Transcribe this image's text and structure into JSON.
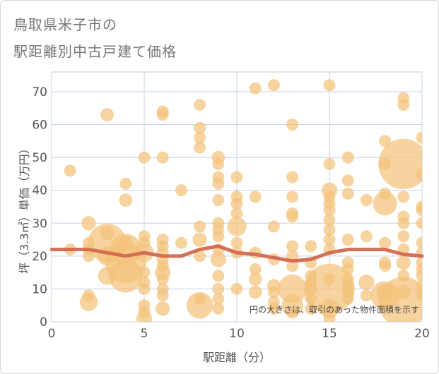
{
  "title_line1": "鳥取県米子市の",
  "title_line2": "駅距離別中古戸建て価格",
  "chart_data": {
    "type": "scatter",
    "xlabel": "駅距離（分）",
    "ylabel": "坪（3.3㎡）単価（万円）",
    "xlim": [
      0,
      20
    ],
    "ylim": [
      0,
      76
    ],
    "xticks": [
      0,
      5,
      10,
      15,
      20
    ],
    "yticks": [
      0,
      10,
      20,
      30,
      40,
      50,
      60,
      70
    ],
    "grid": true,
    "note": "円の大きさは、取引のあった物件面積を示す",
    "bubble_color": "#f4c27a",
    "line_color": "#d2694f",
    "trend_line": {
      "x": [
        0,
        1,
        2,
        3,
        4,
        5,
        6,
        7,
        8,
        9,
        10,
        11,
        12,
        13,
        14,
        15,
        16,
        17,
        18,
        19,
        20
      ],
      "y": [
        22,
        22,
        22,
        21,
        20,
        21,
        20,
        20,
        22,
        23,
        21,
        20.5,
        19.5,
        18.5,
        19,
        21,
        22,
        22,
        22,
        20.5,
        20
      ]
    },
    "points": [
      {
        "x": 1,
        "y": 46,
        "s": 1
      },
      {
        "x": 1,
        "y": 22,
        "s": 1
      },
      {
        "x": 2,
        "y": 30,
        "s": 1.2
      },
      {
        "x": 2,
        "y": 24,
        "s": 1
      },
      {
        "x": 2,
        "y": 22,
        "s": 1
      },
      {
        "x": 2,
        "y": 20,
        "s": 1
      },
      {
        "x": 2,
        "y": 8,
        "s": 1
      },
      {
        "x": 2,
        "y": 6,
        "s": 1.5
      },
      {
        "x": 3,
        "y": 63,
        "s": 1.1
      },
      {
        "x": 3,
        "y": 27,
        "s": 1.2
      },
      {
        "x": 3,
        "y": 24,
        "s": 3.2
      },
      {
        "x": 3,
        "y": 20,
        "s": 1.6
      },
      {
        "x": 3,
        "y": 14,
        "s": 1.5
      },
      {
        "x": 4,
        "y": 42,
        "s": 1
      },
      {
        "x": 4,
        "y": 37,
        "s": 1.1
      },
      {
        "x": 4,
        "y": 22,
        "s": 2.6
      },
      {
        "x": 4,
        "y": 18,
        "s": 3.4
      },
      {
        "x": 4,
        "y": 14,
        "s": 2.8
      },
      {
        "x": 4,
        "y": 24,
        "s": 1.2
      },
      {
        "x": 5,
        "y": 50,
        "s": 1
      },
      {
        "x": 5,
        "y": 26,
        "s": 1
      },
      {
        "x": 5,
        "y": 24,
        "s": 1
      },
      {
        "x": 5,
        "y": 21,
        "s": 1.6
      },
      {
        "x": 5,
        "y": 15,
        "s": 1
      },
      {
        "x": 5,
        "y": 12,
        "s": 1
      },
      {
        "x": 5,
        "y": 10,
        "s": 1
      },
      {
        "x": 5,
        "y": 5,
        "s": 1
      },
      {
        "x": 5,
        "y": 3,
        "s": 1
      },
      {
        "x": 5,
        "y": 1,
        "s": 1.3
      },
      {
        "x": 6,
        "y": 64,
        "s": 1
      },
      {
        "x": 6,
        "y": 63,
        "s": 1
      },
      {
        "x": 6,
        "y": 50,
        "s": 1
      },
      {
        "x": 6,
        "y": 25,
        "s": 1
      },
      {
        "x": 6,
        "y": 23,
        "s": 1
      },
      {
        "x": 6,
        "y": 21,
        "s": 1
      },
      {
        "x": 6,
        "y": 19,
        "s": 1
      },
      {
        "x": 6,
        "y": 17,
        "s": 1
      },
      {
        "x": 6,
        "y": 15,
        "s": 1.3
      },
      {
        "x": 6,
        "y": 13,
        "s": 1
      },
      {
        "x": 6,
        "y": 10,
        "s": 1
      },
      {
        "x": 6,
        "y": 8,
        "s": 1
      },
      {
        "x": 6,
        "y": 4,
        "s": 1.2
      },
      {
        "x": 7,
        "y": 40,
        "s": 1
      },
      {
        "x": 7,
        "y": 24,
        "s": 1
      },
      {
        "x": 8,
        "y": 66,
        "s": 1
      },
      {
        "x": 8,
        "y": 59,
        "s": 1
      },
      {
        "x": 8,
        "y": 56,
        "s": 1
      },
      {
        "x": 8,
        "y": 53,
        "s": 1
      },
      {
        "x": 8,
        "y": 29,
        "s": 1
      },
      {
        "x": 8,
        "y": 25,
        "s": 1.2
      },
      {
        "x": 8,
        "y": 20,
        "s": 1
      },
      {
        "x": 8,
        "y": 7,
        "s": 1
      },
      {
        "x": 8,
        "y": 5,
        "s": 2.2
      },
      {
        "x": 9,
        "y": 50,
        "s": 1.1
      },
      {
        "x": 9,
        "y": 48,
        "s": 1
      },
      {
        "x": 9,
        "y": 44,
        "s": 1
      },
      {
        "x": 9,
        "y": 42,
        "s": 1
      },
      {
        "x": 9,
        "y": 37,
        "s": 1
      },
      {
        "x": 9,
        "y": 30,
        "s": 1
      },
      {
        "x": 9,
        "y": 28,
        "s": 1
      },
      {
        "x": 9,
        "y": 26,
        "s": 1
      },
      {
        "x": 9,
        "y": 22,
        "s": 1
      },
      {
        "x": 9,
        "y": 19,
        "s": 1.3
      },
      {
        "x": 9,
        "y": 14,
        "s": 1
      },
      {
        "x": 9,
        "y": 10,
        "s": 1
      },
      {
        "x": 9,
        "y": 7,
        "s": 1
      },
      {
        "x": 9,
        "y": 4,
        "s": 1
      },
      {
        "x": 10,
        "y": 44,
        "s": 1
      },
      {
        "x": 10,
        "y": 38,
        "s": 1
      },
      {
        "x": 10,
        "y": 36,
        "s": 1
      },
      {
        "x": 10,
        "y": 33,
        "s": 1
      },
      {
        "x": 10,
        "y": 29,
        "s": 1.6
      },
      {
        "x": 10,
        "y": 24,
        "s": 1
      },
      {
        "x": 10,
        "y": 21,
        "s": 1
      },
      {
        "x": 10,
        "y": 10,
        "s": 1
      },
      {
        "x": 11,
        "y": 71,
        "s": 1
      },
      {
        "x": 11,
        "y": 38,
        "s": 1
      },
      {
        "x": 11,
        "y": 21,
        "s": 1
      },
      {
        "x": 11,
        "y": 16,
        "s": 1
      },
      {
        "x": 11,
        "y": 13,
        "s": 1.1
      },
      {
        "x": 11,
        "y": 9,
        "s": 1.1
      },
      {
        "x": 12,
        "y": 72,
        "s": 1
      },
      {
        "x": 12,
        "y": 29,
        "s": 1
      },
      {
        "x": 12,
        "y": 19,
        "s": 1
      },
      {
        "x": 12,
        "y": 11,
        "s": 1.1
      },
      {
        "x": 12,
        "y": 9,
        "s": 1
      },
      {
        "x": 12,
        "y": 6,
        "s": 1
      },
      {
        "x": 12,
        "y": 4,
        "s": 1
      },
      {
        "x": 13,
        "y": 60,
        "s": 1
      },
      {
        "x": 13,
        "y": 44,
        "s": 1
      },
      {
        "x": 13,
        "y": 38,
        "s": 1
      },
      {
        "x": 13,
        "y": 33,
        "s": 1
      },
      {
        "x": 13,
        "y": 32,
        "s": 1
      },
      {
        "x": 13,
        "y": 23,
        "s": 1
      },
      {
        "x": 13,
        "y": 20,
        "s": 1
      },
      {
        "x": 13,
        "y": 17,
        "s": 1
      },
      {
        "x": 13,
        "y": 10,
        "s": 2.4
      },
      {
        "x": 13,
        "y": 5,
        "s": 1.8
      },
      {
        "x": 13,
        "y": 3,
        "s": 1.1
      },
      {
        "x": 14,
        "y": 23,
        "s": 1
      },
      {
        "x": 14,
        "y": 18,
        "s": 1
      },
      {
        "x": 14,
        "y": 14,
        "s": 1
      },
      {
        "x": 14,
        "y": 12,
        "s": 1
      },
      {
        "x": 14,
        "y": 10,
        "s": 1
      },
      {
        "x": 14,
        "y": 7,
        "s": 1
      },
      {
        "x": 14,
        "y": 4,
        "s": 1
      },
      {
        "x": 15,
        "y": 72,
        "s": 1
      },
      {
        "x": 15,
        "y": 48,
        "s": 1
      },
      {
        "x": 15,
        "y": 40,
        "s": 1.3
      },
      {
        "x": 15,
        "y": 38,
        "s": 1
      },
      {
        "x": 15,
        "y": 36,
        "s": 1
      },
      {
        "x": 15,
        "y": 34,
        "s": 1
      },
      {
        "x": 15,
        "y": 31,
        "s": 1
      },
      {
        "x": 15,
        "y": 28,
        "s": 1
      },
      {
        "x": 15,
        "y": 25,
        "s": 1
      },
      {
        "x": 15,
        "y": 22,
        "s": 1
      },
      {
        "x": 15,
        "y": 13,
        "s": 1
      },
      {
        "x": 15,
        "y": 10,
        "s": 4.2
      },
      {
        "x": 15,
        "y": 4,
        "s": 1.6
      },
      {
        "x": 15,
        "y": 1,
        "s": 1
      },
      {
        "x": 16,
        "y": 50,
        "s": 1
      },
      {
        "x": 16,
        "y": 43,
        "s": 1
      },
      {
        "x": 16,
        "y": 39,
        "s": 1
      },
      {
        "x": 16,
        "y": 25,
        "s": 1
      },
      {
        "x": 16,
        "y": 18,
        "s": 1
      },
      {
        "x": 16,
        "y": 16,
        "s": 1
      },
      {
        "x": 16,
        "y": 13,
        "s": 1
      },
      {
        "x": 16,
        "y": 11,
        "s": 1
      },
      {
        "x": 16,
        "y": 9,
        "s": 1
      },
      {
        "x": 16,
        "y": 7,
        "s": 1
      },
      {
        "x": 17,
        "y": 37,
        "s": 1
      },
      {
        "x": 17,
        "y": 26,
        "s": 1
      },
      {
        "x": 17,
        "y": 12,
        "s": 1.3
      },
      {
        "x": 17,
        "y": 8,
        "s": 1
      },
      {
        "x": 18,
        "y": 55,
        "s": 1
      },
      {
        "x": 18,
        "y": 48,
        "s": 1
      },
      {
        "x": 18,
        "y": 39,
        "s": 1
      },
      {
        "x": 18,
        "y": 36,
        "s": 2
      },
      {
        "x": 18,
        "y": 24,
        "s": 1
      },
      {
        "x": 18,
        "y": 18,
        "s": 1
      },
      {
        "x": 18,
        "y": 17,
        "s": 1
      },
      {
        "x": 18,
        "y": 9,
        "s": 1.4
      },
      {
        "x": 18,
        "y": 8,
        "s": 2.4
      },
      {
        "x": 19,
        "y": 68,
        "s": 1
      },
      {
        "x": 19,
        "y": 66,
        "s": 1
      },
      {
        "x": 19,
        "y": 48,
        "s": 4.2
      },
      {
        "x": 19,
        "y": 38,
        "s": 1
      },
      {
        "x": 19,
        "y": 32,
        "s": 1
      },
      {
        "x": 19,
        "y": 30,
        "s": 1
      },
      {
        "x": 19,
        "y": 26,
        "s": 1
      },
      {
        "x": 19,
        "y": 22,
        "s": 1
      },
      {
        "x": 19,
        "y": 18,
        "s": 1.2
      },
      {
        "x": 19,
        "y": 14,
        "s": 1
      },
      {
        "x": 19,
        "y": 9,
        "s": 1.2
      },
      {
        "x": 19,
        "y": 6,
        "s": 4.2
      },
      {
        "x": 20,
        "y": 56,
        "s": 1
      },
      {
        "x": 20,
        "y": 45,
        "s": 1
      },
      {
        "x": 20,
        "y": 35,
        "s": 1
      },
      {
        "x": 20,
        "y": 34,
        "s": 1
      },
      {
        "x": 20,
        "y": 30,
        "s": 1
      },
      {
        "x": 20,
        "y": 24,
        "s": 1
      },
      {
        "x": 20,
        "y": 21,
        "s": 1
      },
      {
        "x": 20,
        "y": 18,
        "s": 1
      },
      {
        "x": 20,
        "y": 16,
        "s": 1
      },
      {
        "x": 20,
        "y": 14,
        "s": 1
      },
      {
        "x": 20,
        "y": 11,
        "s": 1
      },
      {
        "x": 20,
        "y": 8,
        "s": 1
      }
    ]
  }
}
